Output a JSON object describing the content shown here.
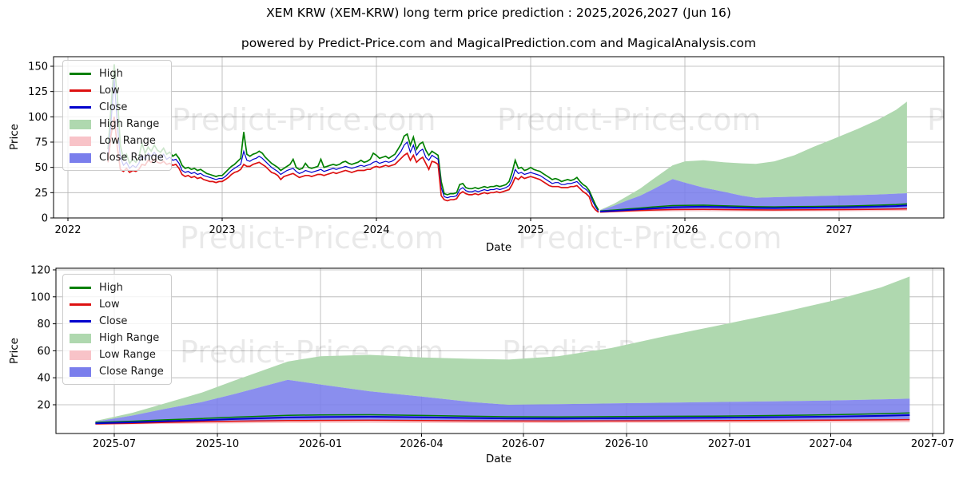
{
  "title": "XEM KRW (XEM-KRW) long term price prediction : 2025,2026,2027 (Jun 16)",
  "subtitle": "powered by Predict-Price.com and MagicalPrediction.com and MagicalAnalysis.com",
  "watermark": "Predict-Price.com",
  "colors": {
    "high": "#008000",
    "low": "#dd1111",
    "close": "#0000cd",
    "high_range": "#afd8af",
    "low_range": "#f8c3c8",
    "close_range": "#7a7eec",
    "grid": "#b3b3b3",
    "spine": "#000000",
    "watermark_gray": "#e8e8e8"
  },
  "legend": {
    "items": [
      {
        "label": "High",
        "swatch": "line",
        "color": "high"
      },
      {
        "label": "Low",
        "swatch": "line",
        "color": "low"
      },
      {
        "label": "Close",
        "swatch": "line",
        "color": "close"
      },
      {
        "label": "High Range",
        "swatch": "patch",
        "color": "high_range"
      },
      {
        "label": "Low Range",
        "swatch": "patch",
        "color": "low_range"
      },
      {
        "label": "Close Range",
        "swatch": "patch",
        "color": "close_range"
      }
    ]
  },
  "chart_data": [
    {
      "type": "line",
      "title": "XEM KRW historical prices with 2025-2027 prediction ranges",
      "xlabel": "Date",
      "ylabel": "Price",
      "xlim": [
        2021.91,
        2027.68
      ],
      "ylim": [
        0,
        158.5
      ],
      "grid": true,
      "legend_position": "upper left",
      "xticks": [
        2022,
        2023,
        2024,
        2025,
        2026,
        2027
      ],
      "xtick_labels": [
        "2022",
        "2023",
        "2024",
        "2025",
        "2026",
        "2027"
      ],
      "yticks": [
        0,
        25,
        50,
        75,
        100,
        125,
        150
      ],
      "ytick_labels": [
        "0",
        "25",
        "50",
        "75",
        "100",
        "125",
        "150"
      ],
      "series": {
        "historical": {
          "t_start": 2022.26,
          "t_step": 0.02,
          "n": 160,
          "close": [
            62,
            95,
            138,
            92,
            60,
            52,
            55,
            49,
            52,
            50,
            54,
            62,
            58,
            64,
            61,
            65,
            61,
            59,
            63,
            58,
            60,
            57,
            58,
            54,
            47,
            45,
            46,
            44,
            45,
            43,
            44,
            42,
            41,
            40,
            39,
            38,
            39,
            39,
            41,
            44,
            47,
            49,
            51,
            53,
            66,
            57,
            56,
            58,
            59,
            61,
            59,
            56,
            53,
            50,
            48,
            46,
            43,
            45,
            47,
            48,
            49,
            46,
            44,
            45,
            47,
            46,
            45,
            46,
            47,
            48,
            46,
            47,
            48,
            49,
            48,
            49,
            50,
            51,
            50,
            49,
            50,
            51,
            52,
            51,
            52,
            53,
            55,
            56,
            54,
            55,
            56,
            55,
            56,
            58,
            62,
            66,
            72,
            75,
            65,
            72,
            62,
            66,
            68,
            60,
            57,
            62,
            60,
            58,
            30,
            21,
            20,
            21,
            21,
            22,
            28,
            30,
            27,
            26,
            26,
            27,
            26,
            27,
            28,
            27,
            28,
            28,
            29,
            28,
            29,
            30,
            32,
            38,
            48,
            44,
            45,
            43,
            44,
            45,
            44,
            43,
            42,
            40,
            38,
            36,
            34,
            35,
            35,
            33,
            33,
            34,
            34,
            35,
            36,
            33,
            30,
            28,
            25,
            17,
            11,
            6.5
          ],
          "high": [
            68,
            110,
            152,
            120,
            72,
            58,
            63,
            54,
            58,
            55,
            60,
            74,
            64,
            70,
            66,
            72,
            67,
            65,
            69,
            63,
            65,
            61,
            63,
            59,
            52,
            49,
            50,
            48,
            49,
            47,
            48,
            46,
            44,
            43,
            42,
            41,
            42,
            42,
            45,
            48,
            51,
            53,
            56,
            59,
            85,
            63,
            61,
            63,
            64,
            66,
            64,
            60,
            57,
            54,
            52,
            50,
            47,
            49,
            51,
            53,
            58,
            50,
            48,
            49,
            54,
            50,
            49,
            50,
            51,
            58,
            50,
            51,
            52,
            53,
            52,
            53,
            55,
            56,
            54,
            53,
            54,
            55,
            57,
            55,
            56,
            58,
            64,
            62,
            59,
            60,
            61,
            59,
            61,
            63,
            68,
            73,
            81,
            83,
            72,
            80,
            68,
            73,
            75,
            67,
            62,
            66,
            64,
            62,
            36,
            24,
            23,
            24,
            24,
            25,
            33,
            34,
            30,
            29,
            29,
            30,
            29,
            30,
            31,
            30,
            31,
            31,
            32,
            31,
            32,
            33,
            36,
            45,
            57,
            49,
            50,
            47,
            48,
            50,
            48,
            47,
            46,
            44,
            42,
            40,
            38,
            39,
            38,
            36,
            37,
            38,
            37,
            38,
            40,
            36,
            33,
            31,
            27,
            20,
            13,
            8
          ],
          "low": [
            55,
            82,
            100,
            70,
            48,
            46,
            49,
            45,
            47,
            46,
            48,
            53,
            52,
            57,
            55,
            58,
            55,
            54,
            56,
            53,
            54,
            52,
            53,
            49,
            43,
            41,
            42,
            40,
            41,
            39,
            40,
            38,
            37,
            36,
            36,
            35,
            36,
            36,
            38,
            40,
            43,
            45,
            46,
            48,
            53,
            51,
            51,
            53,
            54,
            55,
            53,
            51,
            48,
            45,
            44,
            42,
            38,
            41,
            42,
            43,
            44,
            42,
            40,
            41,
            42,
            42,
            41,
            42,
            43,
            43,
            42,
            43,
            44,
            45,
            44,
            45,
            46,
            47,
            46,
            45,
            46,
            47,
            47,
            47,
            48,
            48,
            50,
            51,
            50,
            51,
            52,
            51,
            52,
            53,
            56,
            59,
            62,
            64,
            57,
            62,
            55,
            58,
            60,
            54,
            48,
            56,
            55,
            53,
            22,
            18,
            17,
            18,
            18,
            19,
            24,
            26,
            24,
            23,
            23,
            24,
            23,
            24,
            25,
            24,
            25,
            25,
            26,
            25,
            26,
            27,
            28,
            33,
            40,
            38,
            41,
            39,
            40,
            41,
            40,
            39,
            38,
            36,
            34,
            32,
            31,
            31,
            31,
            30,
            30,
            30,
            31,
            31,
            32,
            29,
            26,
            24,
            21,
            12,
            8,
            5.5
          ]
        },
        "forecast": {
          "t": [
            2025.45,
            2025.54,
            2025.62,
            2025.71,
            2025.79,
            2025.92,
            2026.0,
            2026.12,
            2026.25,
            2026.37,
            2026.46,
            2026.58,
            2026.71,
            2026.83,
            2026.96,
            2027.04,
            2027.12,
            2027.25,
            2027.37,
            2027.44
          ],
          "high_range_top": [
            8,
            14,
            21,
            29,
            38,
            52,
            56,
            57,
            55,
            54,
            53.5,
            56,
            62,
            70,
            78,
            83,
            88,
            97,
            107,
            115
          ],
          "close_range_top": [
            7.5,
            12,
            17,
            22,
            28,
            38.5,
            35,
            30,
            26,
            22,
            20,
            20.5,
            21,
            21.5,
            22,
            22.3,
            22.6,
            23.2,
            24,
            24.5
          ],
          "high": [
            6.9,
            7.8,
            8.8,
            9.8,
            10.8,
            12.2,
            12.5,
            12.6,
            12.1,
            11.5,
            11.1,
            11.0,
            11.2,
            11.4,
            11.6,
            11.8,
            12.1,
            12.6,
            13.3,
            13.9
          ],
          "close": [
            6.3,
            7.0,
            7.8,
            8.6,
            9.4,
            10.6,
            10.9,
            11.1,
            10.7,
            10.2,
            9.9,
            9.8,
            10.0,
            10.2,
            10.4,
            10.6,
            10.8,
            11.2,
            11.8,
            12.3
          ],
          "low": [
            5.8,
            6.3,
            6.9,
            7.4,
            7.8,
            8.3,
            8.4,
            8.5,
            8.3,
            8.1,
            8.0,
            7.9,
            8.0,
            8.1,
            8.2,
            8.3,
            8.4,
            8.6,
            8.8,
            9.0
          ],
          "low_range_bottom": [
            5.2,
            5.5,
            5.8,
            6.1,
            6.3,
            6.5,
            6.6,
            6.6,
            6.5,
            6.4,
            6.4,
            6.4,
            6.5,
            6.5,
            6.6,
            6.6,
            6.7,
            6.8,
            6.9,
            7.0
          ]
        }
      }
    },
    {
      "type": "area",
      "title": "XEM KRW 2025-2027 prediction (zoomed)",
      "xlabel": "Date",
      "ylabel": "Price",
      "xlim": [
        2025.35,
        2027.53
      ],
      "ylim": [
        -1.3,
        121
      ],
      "grid": true,
      "legend_position": "upper left",
      "xticks": [
        2025.496,
        2025.748,
        2026.0,
        2026.247,
        2026.496,
        2026.748,
        2027.0,
        2027.247,
        2027.496
      ],
      "xtick_labels": [
        "2025-07",
        "2025-10",
        "2026-01",
        "2026-04",
        "2026-07",
        "2026-10",
        "2027-01",
        "2027-04",
        "2027-07"
      ],
      "yticks": [
        20,
        40,
        60,
        80,
        100,
        120
      ],
      "ytick_labels": [
        "20",
        "40",
        "60",
        "80",
        "100",
        "120"
      ],
      "series_ref": "chart_data.0.series.forecast"
    }
  ]
}
